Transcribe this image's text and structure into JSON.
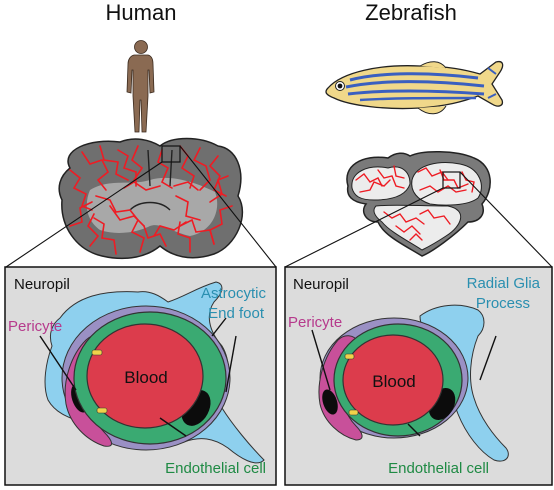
{
  "titles": {
    "left": "Human",
    "right": "Zebrafish"
  },
  "panels": {
    "left": {
      "neuropil": "Neuropil",
      "pericyte": "Pericyte",
      "astro_line1": "Astrocytic",
      "astro_line2": "End foot",
      "blood": "Blood",
      "endothelial": "Endothelial cell"
    },
    "right": {
      "neuropil": "Neuropil",
      "pericyte": "Pericyte",
      "glia_line1": "Radial Glia",
      "glia_line2": "Process",
      "blood": "Blood",
      "endothelial": "Endothelial cell"
    }
  },
  "colors": {
    "panel_bg": "#dcdcdc",
    "blood": "#dc3c4c",
    "endothelial": "#3aaa72",
    "pericyte": "#c8509a",
    "astrocyte": "#8ed0ee",
    "basement": "#9a90c4",
    "label_blue": "#2a8fb0",
    "label_pink": "#b63a8c",
    "label_green": "#1f8a44",
    "vessel_red": "#ee1c24",
    "brain_gray": "#7f7f7f"
  }
}
